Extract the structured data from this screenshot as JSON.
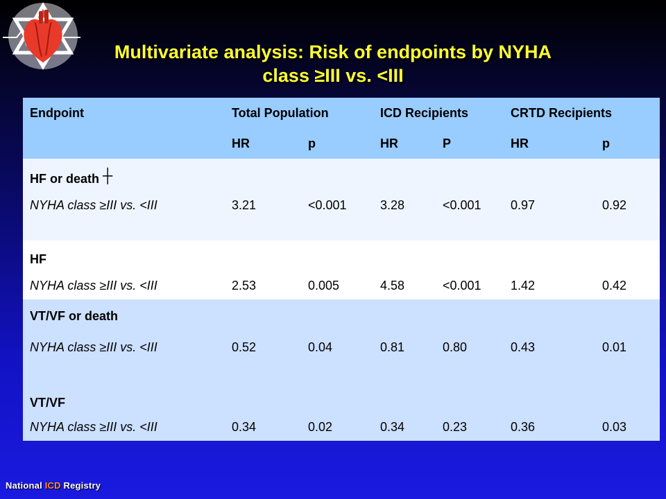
{
  "title": {
    "line1": "Multivariate analysis: Risk of endpoints by NYHA",
    "line2": "class ≥III vs. <III"
  },
  "table": {
    "header1": {
      "endpoint": "Endpoint",
      "total": "Total Population",
      "icd": "ICD Recipients",
      "crtd": "CRTD Recipients"
    },
    "header2": {
      "hr1": "HR",
      "p1": "p",
      "hr2": "HR",
      "p2": "P",
      "hr3": "HR",
      "p3": "p"
    },
    "sections": [
      {
        "name": "HF or death",
        "marker": "┼",
        "label": "NYHA class ≥III vs. <III",
        "values": [
          "3.21",
          "<0.001",
          "3.28",
          "<0.001",
          "0.97",
          "0.92"
        ]
      },
      {
        "name": "HF",
        "label": "NYHA class ≥III vs. <III",
        "values": [
          "2.53",
          "0.005",
          "4.58",
          "<0.001",
          "1.42",
          "0.42"
        ]
      },
      {
        "name": "VT/VF or death",
        "label": "NYHA class ≥III vs. <III",
        "values": [
          "0.52",
          "0.04",
          "0.81",
          "0.80",
          "0.43",
          "0.01"
        ]
      },
      {
        "name": "VT/VF",
        "label": "NYHA class ≥III vs. <III",
        "values": [
          "0.34",
          "0.02",
          "0.34",
          "0.23",
          "0.36",
          "0.03"
        ]
      }
    ]
  },
  "footer": {
    "part1": "National ",
    "part2": "ICD",
    "part3": " Registry"
  },
  "logo": {
    "icon": "heart-star-of-david-icon"
  },
  "colors": {
    "title": "#ffff33",
    "header_bg": "#99ccff",
    "accent": "#ff8c1a"
  }
}
